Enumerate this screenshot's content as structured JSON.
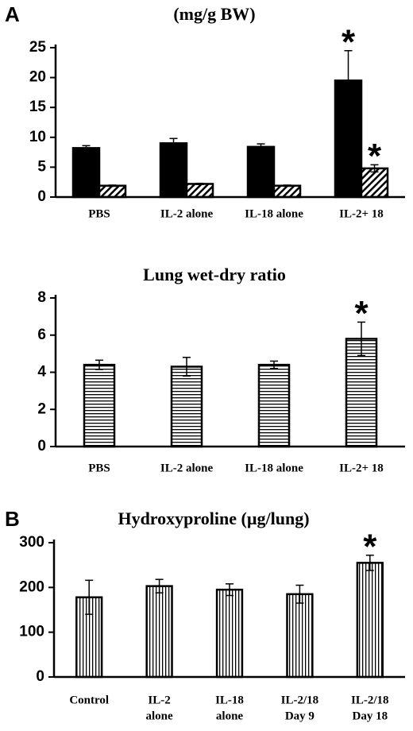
{
  "chart_data": [
    {
      "type": "bar",
      "panel_label": "A",
      "title": "(mg/g BW)",
      "categories": [
        "PBS",
        "IL-2 alone",
        "IL-18 alone",
        "IL-2+ 18"
      ],
      "series": [
        {
          "color": "#000000",
          "pattern": "solid",
          "values": [
            8.2,
            9.0,
            8.4,
            19.5
          ],
          "errors": [
            0.4,
            0.8,
            0.5,
            5.0
          ]
        },
        {
          "color": "#000000",
          "pattern": "diagonal",
          "values": [
            1.9,
            2.2,
            1.9,
            4.8
          ],
          "errors": [
            0.1,
            0.1,
            0.1,
            0.6
          ]
        }
      ],
      "ylim": [
        0,
        25
      ],
      "yticks": [
        0,
        5,
        10,
        15,
        20,
        25
      ],
      "annotations": [
        {
          "text": "*",
          "category": 3,
          "series": 0
        },
        {
          "text": "*",
          "category": 3,
          "series": 1
        }
      ]
    },
    {
      "type": "bar",
      "title": "Lung wet-dry ratio",
      "categories": [
        "PBS",
        "IL-2 alone",
        "IL-18 alone",
        "IL-2+ 18"
      ],
      "series": [
        {
          "color": "#000000",
          "pattern": "horizontal",
          "values": [
            4.4,
            4.3,
            4.4,
            5.8
          ],
          "errors": [
            0.25,
            0.5,
            0.2,
            0.9
          ]
        }
      ],
      "ylim": [
        0,
        8
      ],
      "yticks": [
        0,
        2,
        4,
        6,
        8
      ],
      "annotations": [
        {
          "text": "*",
          "category": 3,
          "series": 0
        }
      ]
    },
    {
      "type": "bar",
      "panel_label": "B",
      "title": "Hydroxyproline (µg/lung)",
      "categories": [
        [
          "Control"
        ],
        [
          "IL-2",
          "alone"
        ],
        [
          "IL-18",
          "alone"
        ],
        [
          "IL-2/18",
          "Day 9"
        ],
        [
          "IL-2/18",
          "Day 18"
        ]
      ],
      "series": [
        {
          "color": "#000000",
          "pattern": "vertical",
          "values": [
            178,
            203,
            195,
            185,
            255
          ],
          "errors": [
            38,
            15,
            13,
            20,
            17
          ]
        }
      ],
      "ylim": [
        0,
        300
      ],
      "yticks": [
        0,
        100,
        200,
        300
      ],
      "annotations": [
        {
          "text": "*",
          "category": 4,
          "series": 0
        }
      ]
    }
  ]
}
